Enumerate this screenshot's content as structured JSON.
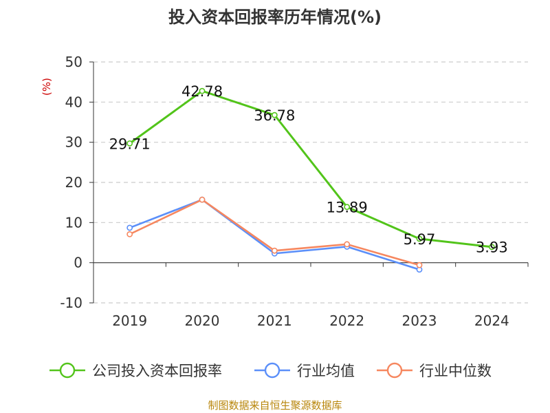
{
  "chart_data": {
    "type": "line",
    "title": "投入资本回报率历年情况(%)",
    "ylabel": "(%)",
    "xlabel": "",
    "categories": [
      "2019",
      "2020",
      "2021",
      "2022",
      "2023",
      "2024"
    ],
    "ylim": [
      -10,
      50
    ],
    "yticks": [
      "50",
      "40",
      "30",
      "20",
      "10",
      "0",
      "-10"
    ],
    "grid": true,
    "legend_position": "bottom",
    "series": [
      {
        "name": "公司投入资本回报率",
        "color": "#52c41a",
        "values": [
          29.71,
          42.78,
          36.78,
          13.89,
          5.97,
          3.93
        ],
        "labels": [
          "29.71",
          "42.78",
          "36.78",
          "13.89",
          "5.97",
          "3.93"
        ]
      },
      {
        "name": "行业均值",
        "color": "#5b8ff9",
        "values": [
          8.7,
          15.7,
          2.3,
          4.0,
          -1.7,
          null
        ]
      },
      {
        "name": "行业中位数",
        "color": "#f6875f",
        "values": [
          7.1,
          15.7,
          3.0,
          4.6,
          -0.6,
          null
        ]
      }
    ],
    "source": "制图数据来自恒生聚源数据库"
  }
}
